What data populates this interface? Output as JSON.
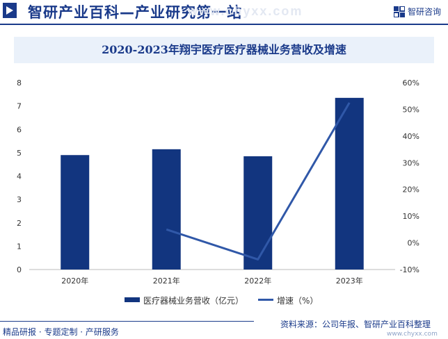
{
  "header": {
    "title": "智研产业百科—产业研究第一站",
    "watermark": "www.chyxx.com",
    "logo_text": "智研咨询"
  },
  "footer": {
    "left": "精品研报 · 专题定制 · 产研服务",
    "source": "资料来源：公司年报、智研产业百科整理",
    "url": "www.chyxx.com"
  },
  "chart_data": {
    "type": "bar",
    "title": "2020-2023年翔宇医疗医疗器械业务营收及增速",
    "categories": [
      "2020年",
      "2021年",
      "2022年",
      "2023年"
    ],
    "series": [
      {
        "name": "医疗器械业务营收（亿元）",
        "type": "bar",
        "axis": "left",
        "values": [
          4.9,
          5.15,
          4.85,
          7.35
        ],
        "color": "#12357f"
      },
      {
        "name": "增速（%）",
        "type": "line",
        "axis": "right",
        "values": [
          null,
          5.0,
          -6.2,
          52.5
        ],
        "color": "#3058a8"
      }
    ],
    "y_left": {
      "min": 0,
      "max": 8,
      "ticks": [
        "0",
        "1",
        "2",
        "3",
        "4",
        "5",
        "6",
        "7",
        "8"
      ]
    },
    "y_right": {
      "min": -10,
      "max": 60,
      "ticks": [
        "-10%",
        "0%",
        "10%",
        "20%",
        "30%",
        "40%",
        "50%",
        "60%"
      ]
    },
    "grid": false,
    "legend_position": "bottom"
  }
}
